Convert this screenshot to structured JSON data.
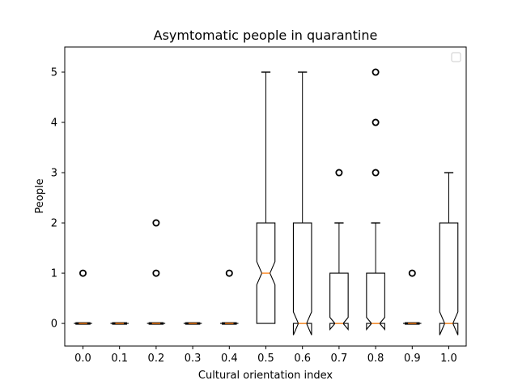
{
  "chart_data": {
    "type": "boxplot",
    "title": "Asymtomatic people in quarantine",
    "xlabel": "Cultural orientation index",
    "ylabel": "People",
    "ylim": [
      -0.45,
      5.5
    ],
    "yticks": [
      "0",
      "1",
      "2",
      "3",
      "4",
      "5"
    ],
    "legend": "top-right",
    "legend_entries": [],
    "colors": {
      "box": "#000000",
      "median": "#ff7f0e",
      "background": "#ffffff"
    },
    "notched": true,
    "categories": [
      "0.0",
      "0.1",
      "0.2",
      "0.3",
      "0.4",
      "0.5",
      "0.6",
      "0.7",
      "0.8",
      "0.9",
      "1.0"
    ],
    "boxes": [
      {
        "q1": 0,
        "median": 0,
        "q3": 0,
        "whislo": 0,
        "whishi": 0,
        "notchlo": 0,
        "notchhi": 0,
        "fliers": [
          1
        ]
      },
      {
        "q1": 0,
        "median": 0,
        "q3": 0,
        "whislo": 0,
        "whishi": 0,
        "notchlo": 0,
        "notchhi": 0,
        "fliers": []
      },
      {
        "q1": 0,
        "median": 0,
        "q3": 0,
        "whislo": 0,
        "whishi": 0,
        "notchlo": 0,
        "notchhi": 0,
        "fliers": [
          1,
          2
        ]
      },
      {
        "q1": 0,
        "median": 0,
        "q3": 0,
        "whislo": 0,
        "whishi": 0,
        "notchlo": 0,
        "notchhi": 0,
        "fliers": []
      },
      {
        "q1": 0,
        "median": 0,
        "q3": 0,
        "whislo": 0,
        "whishi": 0,
        "notchlo": 0,
        "notchhi": 0,
        "fliers": [
          1
        ]
      },
      {
        "q1": 0,
        "median": 1,
        "q3": 2,
        "whislo": 0,
        "whishi": 5,
        "notchlo": 0.77,
        "notchhi": 1.23,
        "fliers": []
      },
      {
        "q1": 0,
        "median": 0,
        "q3": 2,
        "whislo": 0,
        "whishi": 5,
        "notchlo": -0.23,
        "notchhi": 0.23,
        "fliers": []
      },
      {
        "q1": 0,
        "median": 0,
        "q3": 1,
        "whislo": 0,
        "whishi": 2,
        "notchlo": -0.12,
        "notchhi": 0.12,
        "fliers": [
          3
        ]
      },
      {
        "q1": 0,
        "median": 0,
        "q3": 1,
        "whislo": 0,
        "whishi": 2,
        "notchlo": -0.12,
        "notchhi": 0.12,
        "fliers": [
          3,
          4,
          5
        ]
      },
      {
        "q1": 0,
        "median": 0,
        "q3": 0,
        "whislo": 0,
        "whishi": 0,
        "notchlo": 0,
        "notchhi": 0,
        "fliers": [
          1
        ]
      },
      {
        "q1": 0,
        "median": 0,
        "q3": 2,
        "whislo": 0,
        "whishi": 3,
        "notchlo": -0.23,
        "notchhi": 0.23,
        "fliers": []
      }
    ]
  }
}
